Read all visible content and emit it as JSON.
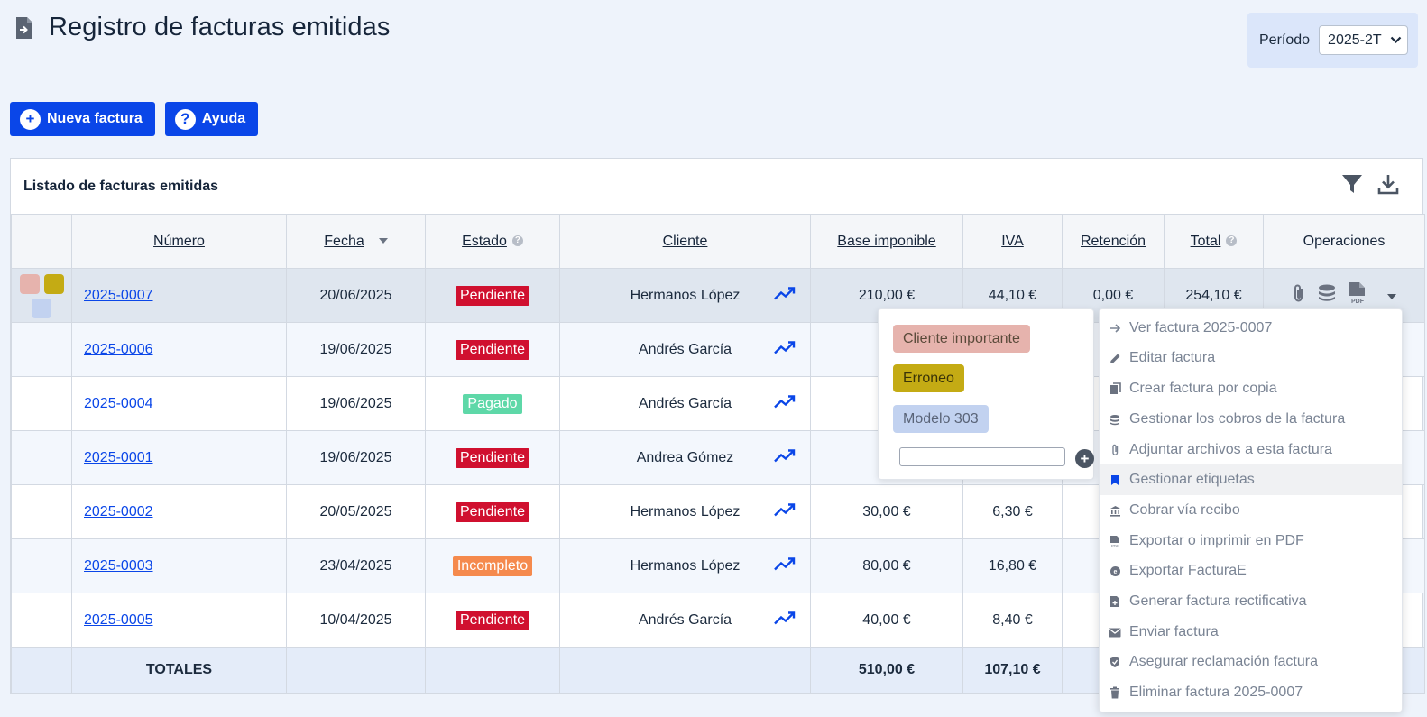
{
  "header": {
    "title": "Registro de facturas emitidas"
  },
  "period": {
    "label": "Período",
    "value": "2025-2T"
  },
  "toolbar": {
    "new_invoice": "Nueva factura",
    "help": "Ayuda"
  },
  "panel": {
    "title": "Listado de facturas emitidas"
  },
  "table": {
    "headers": {
      "numero": "Número",
      "fecha": "Fecha",
      "estado": "Estado",
      "cliente": "Cliente",
      "base": "Base imponible",
      "iva": "IVA",
      "retencion": "Retención",
      "total": "Total",
      "operaciones": "Operaciones"
    },
    "rows": [
      {
        "numero": "2025-0007",
        "fecha": "20/06/2025",
        "estado": "Pendiente",
        "cliente": "Hermanos López",
        "base": "210,00 €",
        "iva": "44,10 €",
        "retencion": "0,00 €",
        "total": "254,10 €"
      },
      {
        "numero": "2025-0006",
        "fecha": "19/06/2025",
        "estado": "Pendiente",
        "cliente": "Andrés García",
        "base": "20",
        "iva": "",
        "retencion": "0",
        "total": ""
      },
      {
        "numero": "2025-0004",
        "fecha": "19/06/2025",
        "estado": "Pagado",
        "cliente": "Andrés García",
        "base": "50",
        "iva": "",
        "retencion": "0",
        "total": ""
      },
      {
        "numero": "2025-0001",
        "fecha": "19/06/2025",
        "estado": "Pendiente",
        "cliente": "Andrea Gómez",
        "base": "80",
        "iva": "",
        "retencion": "0",
        "total": ""
      },
      {
        "numero": "2025-0002",
        "fecha": "20/05/2025",
        "estado": "Pendiente",
        "cliente": "Hermanos López",
        "base": "30,00 €",
        "iva": "6,30 €",
        "retencion": "0",
        "total": ""
      },
      {
        "numero": "2025-0003",
        "fecha": "23/04/2025",
        "estado": "Incompleto",
        "cliente": "Hermanos López",
        "base": "80,00 €",
        "iva": "16,80 €",
        "retencion": "0",
        "total": ""
      },
      {
        "numero": "2025-0005",
        "fecha": "10/04/2025",
        "estado": "Pendiente",
        "cliente": "Andrés García",
        "base": "40,00 €",
        "iva": "8,40 €",
        "retencion": "0",
        "total": ""
      }
    ],
    "totals": {
      "label": "TOTALES",
      "base": "510,00 €",
      "iva": "107,10 €",
      "retencion": "0",
      "total": ""
    }
  },
  "status_colors": {
    "Pendiente": "#d0102f",
    "Pagado": "#5ed8a8",
    "Incompleto": "#f58a4d"
  },
  "tag_colors": {
    "cliente_importante": "#e6b3ad",
    "erroneo": "#c4ab14",
    "modelo_303": "#c2d2f0"
  },
  "tags_popup": {
    "tags": [
      "Cliente importante",
      "Erroneo",
      "Modelo 303"
    ],
    "input_value": ""
  },
  "menu": {
    "items": [
      "Ver factura 2025-0007",
      "Editar factura",
      "Crear factura por copia",
      "Gestionar los cobros de la factura",
      "Adjuntar archivos a esta factura",
      "Gestionar etiquetas",
      "Cobrar vía recibo",
      "Exportar o imprimir en PDF",
      "Exportar FacturaE",
      "Generar factura rectificativa",
      "Enviar factura",
      "Asegurar reclamación factura",
      "Eliminar factura 2025-0007"
    ],
    "active_item": "Gestionar etiquetas"
  }
}
